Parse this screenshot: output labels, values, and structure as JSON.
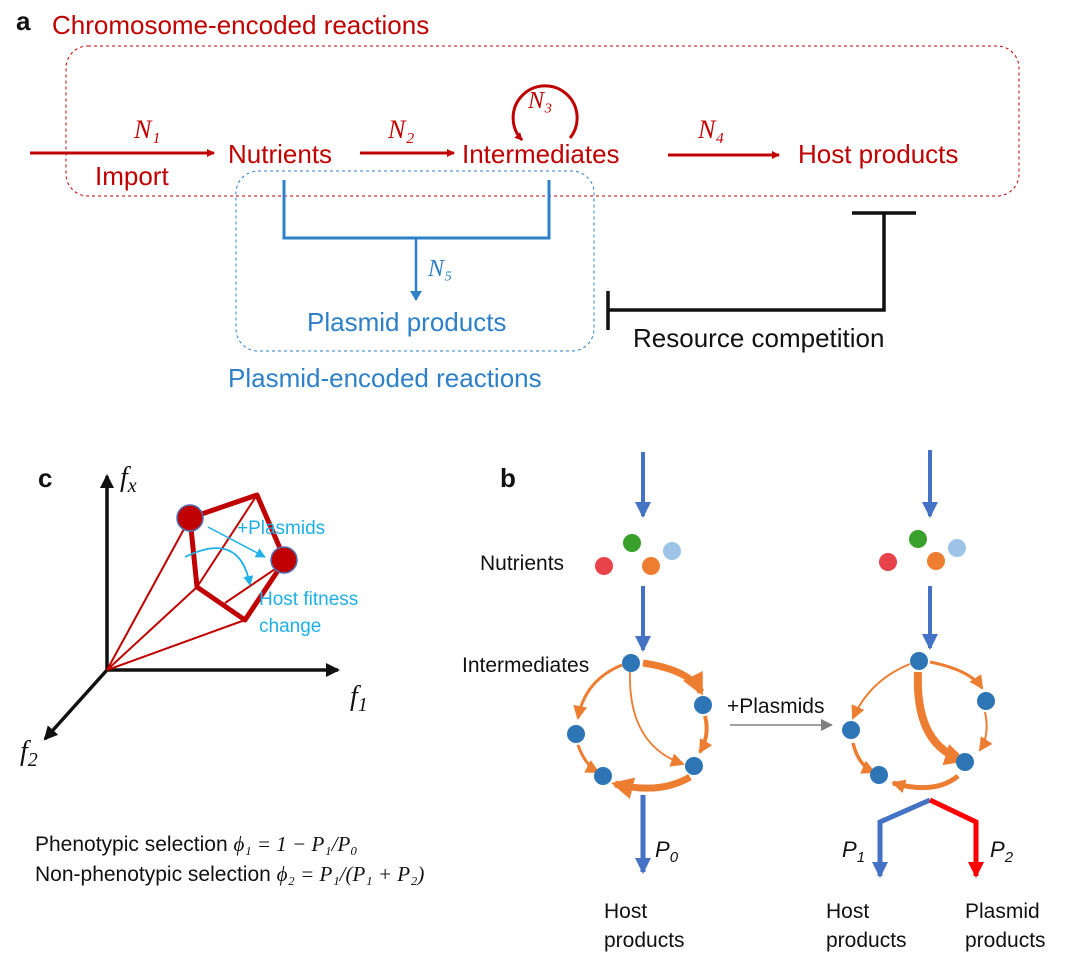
{
  "panel_a": {
    "label": "a",
    "chromosome_title": "Chromosome-encoded reactions",
    "n1": "N₁",
    "import": "Import",
    "nutrients": "Nutrients",
    "n2": "N₂",
    "intermediates": "Intermediates",
    "n3": "N₃",
    "n4": "N₄",
    "host_products": "Host products",
    "n5": "N₅",
    "plasmid_products": "Plasmid products",
    "plasmid_title": "Plasmid-encoded reactions",
    "resource_competition": "Resource competition"
  },
  "panel_c": {
    "label": "c",
    "axis_fx": "f",
    "axis_fx_sub": "x",
    "axis_f1": "f",
    "axis_f1_sub": "1",
    "axis_f2": "f",
    "axis_f2_sub": "2",
    "plasmids": "+Plasmids",
    "host_fitness_1": "Host fitness",
    "host_fitness_2": "change"
  },
  "formulas": {
    "line1_text": "Phenotypic selection ",
    "line1_math": "ϕ₁ = 1 − P₁/P₀",
    "line2_text": "Non-phenotypic selection ",
    "line2_math": "ϕ₂ = P₁/(P₁ + P₂)"
  },
  "panel_b": {
    "label": "b",
    "nutrients": "Nutrients",
    "intermediates": "Intermediates",
    "plasmids": "+Plasmids",
    "p0": "P",
    "p0_sub": "0",
    "p1": "P",
    "p1_sub": "1",
    "p2": "P",
    "p2_sub": "2",
    "host_products_1": "Host",
    "host_products_2": "products",
    "host_products_right_1": "Host",
    "host_products_right_2": "products",
    "plasmid_products_1": "Plasmid",
    "plasmid_products_2": "products"
  },
  "colors": {
    "chromosome": "#c00000",
    "plasmid": "#2e80c8",
    "flux_arrow": "#4472c4",
    "reaction": "#ed7d31",
    "metabolite": "#2e75b6",
    "plasmid_product": "#ff0000",
    "annotation": "#1fb0e6"
  }
}
